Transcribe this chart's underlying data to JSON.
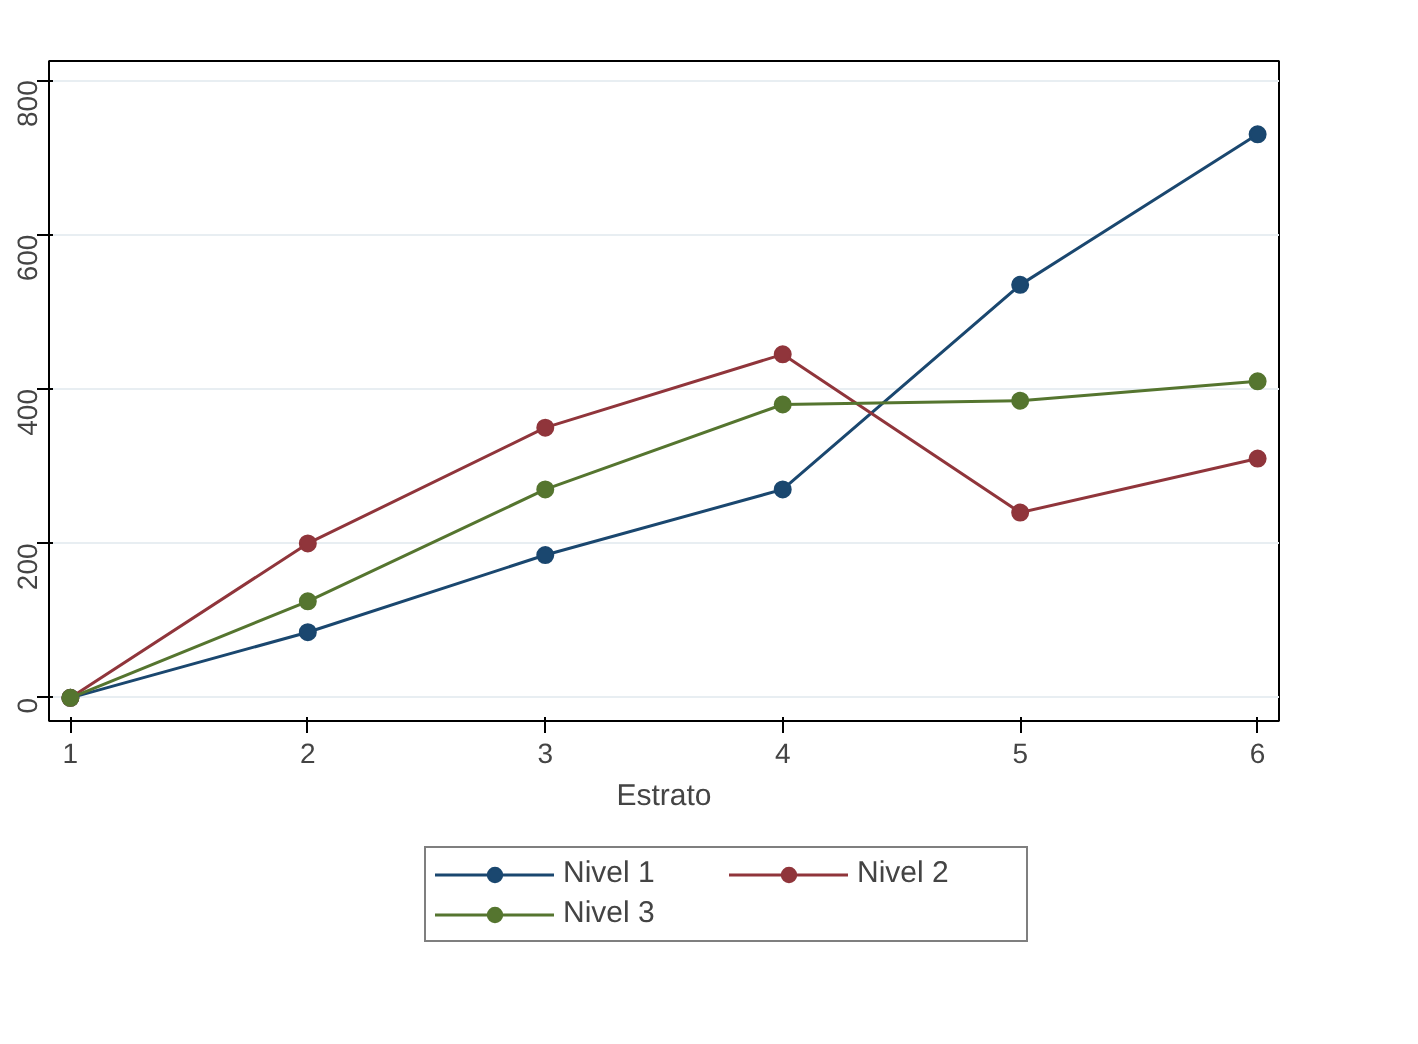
{
  "chart_data": {
    "type": "line",
    "xlabel": "Estrato",
    "x": [
      1,
      2,
      3,
      4,
      5,
      6
    ],
    "series": [
      {
        "name": "Nivel 1",
        "color": "#1a476f",
        "values": [
          0,
          85,
          185,
          270,
          535,
          730
        ]
      },
      {
        "name": "Nivel 2",
        "color": "#90353b",
        "values": [
          0,
          200,
          350,
          445,
          240,
          310
        ]
      },
      {
        "name": "Nivel 3",
        "color": "#55752f",
        "values": [
          0,
          125,
          270,
          380,
          385,
          410
        ]
      }
    ],
    "xlim": [
      0.91,
      6.09
    ],
    "ylim": [
      -30,
      825
    ],
    "xticks": [
      1,
      2,
      3,
      4,
      5,
      6
    ],
    "yticks": [
      0,
      200,
      400,
      600,
      800
    ],
    "grid": "y",
    "legend": "bottom",
    "marker": "circle",
    "line_style": "solid"
  }
}
